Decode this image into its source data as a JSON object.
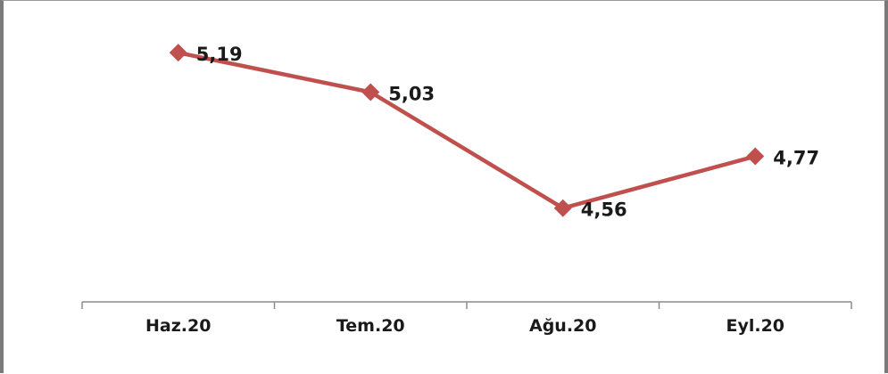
{
  "chart_data": {
    "type": "line",
    "categories": [
      "Haz.20",
      "Tem.20",
      "Ağu.20",
      "Eyl.20"
    ],
    "series": [
      {
        "values": [
          5.19,
          5.03,
          4.56,
          4.77
        ],
        "labels": [
          "5,19",
          "5,03",
          "4,56",
          "4,77"
        ],
        "color": "#C0504D",
        "marker": "diamond"
      }
    ],
    "ylim": [
      4.18,
      5.4
    ],
    "grid": false,
    "legend": "none"
  }
}
